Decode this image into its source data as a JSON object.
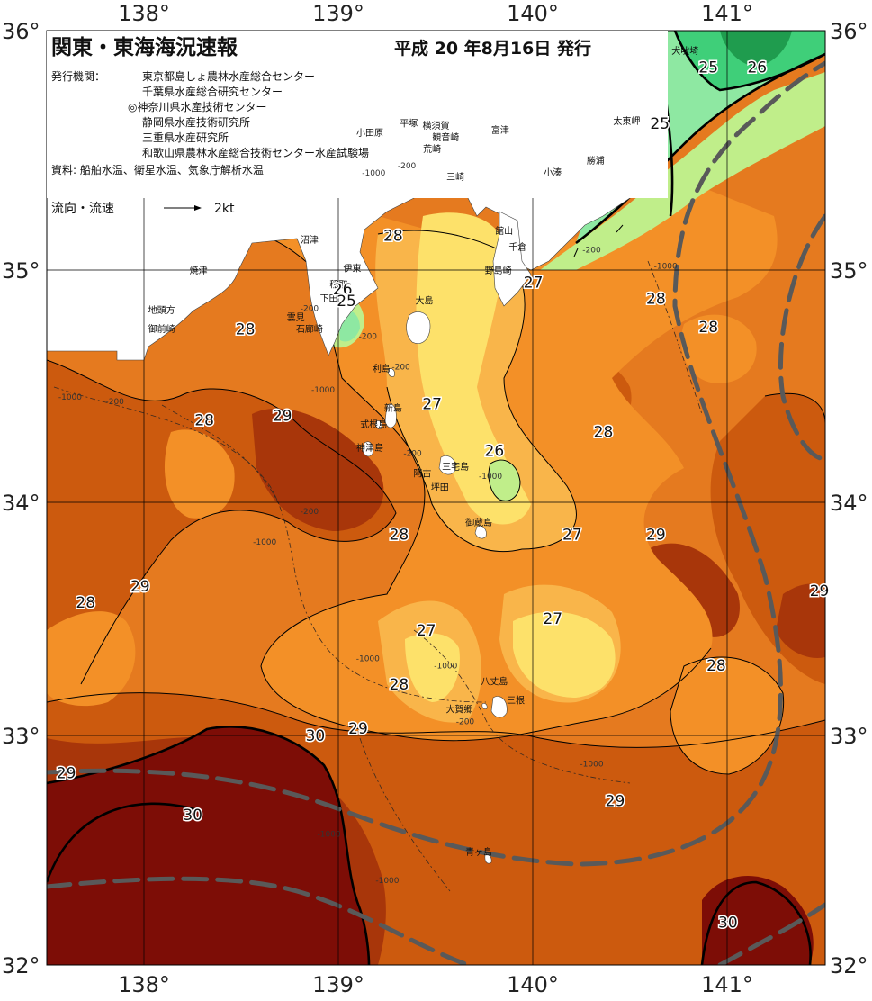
{
  "header": {
    "title": "関東・東海海況速報",
    "issue_date": "平成 20 年8月16日 発行",
    "org_label": "発行機関：",
    "organizations": [
      "東京都島しょ農林水産総合センター",
      "千葉県水産総合研究センター",
      "◎神奈川県水産技術センター",
      "静岡県水産技術研究所",
      "三重県水産研究所",
      "和歌山県農林水産総合技術センター水産試験場"
    ],
    "source": "資料: 船舶水温、衛星水温、気象庁解析水温",
    "current_legend_label": "流向・流速",
    "current_legend_scale": "2kt"
  },
  "axes": {
    "lon_labels": [
      "138°",
      "139°",
      "140°",
      "141°"
    ],
    "lat_labels": [
      "36°",
      "35°",
      "34°",
      "33°",
      "32°"
    ],
    "lon_range": [
      137.5,
      141.5
    ],
    "lat_range": [
      32,
      36
    ]
  },
  "isotherm_labels": [
    {
      "text": "25",
      "lon": 140.9,
      "lat": 35.82
    },
    {
      "text": "26",
      "lon": 141.15,
      "lat": 35.82
    },
    {
      "text": "25",
      "lon": 140.65,
      "lat": 35.58
    },
    {
      "text": "28",
      "lon": 139.28,
      "lat": 35.1
    },
    {
      "text": "26",
      "lon": 139.02,
      "lat": 34.87
    },
    {
      "text": "25",
      "lon": 139.04,
      "lat": 34.82
    },
    {
      "text": "27",
      "lon": 140.0,
      "lat": 34.9
    },
    {
      "text": "28",
      "lon": 140.63,
      "lat": 34.83
    },
    {
      "text": "28",
      "lon": 140.9,
      "lat": 34.71
    },
    {
      "text": "28",
      "lon": 138.52,
      "lat": 34.7
    },
    {
      "text": "27",
      "lon": 139.48,
      "lat": 34.38
    },
    {
      "text": "28",
      "lon": 138.31,
      "lat": 34.31
    },
    {
      "text": "29",
      "lon": 138.71,
      "lat": 34.33
    },
    {
      "text": "28",
      "lon": 140.36,
      "lat": 34.26
    },
    {
      "text": "26",
      "lon": 139.8,
      "lat": 34.18
    },
    {
      "text": "28",
      "lon": 139.31,
      "lat": 33.82
    },
    {
      "text": "27",
      "lon": 140.2,
      "lat": 33.82
    },
    {
      "text": "29",
      "lon": 140.63,
      "lat": 33.82
    },
    {
      "text": "29",
      "lon": 137.98,
      "lat": 33.6
    },
    {
      "text": "28",
      "lon": 137.7,
      "lat": 33.53
    },
    {
      "text": "29",
      "lon": 141.47,
      "lat": 33.58
    },
    {
      "text": "27",
      "lon": 140.1,
      "lat": 33.46
    },
    {
      "text": "27",
      "lon": 139.45,
      "lat": 33.41
    },
    {
      "text": "28",
      "lon": 140.94,
      "lat": 33.26
    },
    {
      "text": "28",
      "lon": 139.31,
      "lat": 33.18
    },
    {
      "text": "30",
      "lon": 138.88,
      "lat": 32.96
    },
    {
      "text": "29",
      "lon": 139.1,
      "lat": 32.99
    },
    {
      "text": "29",
      "lon": 137.6,
      "lat": 32.8
    },
    {
      "text": "30",
      "lon": 138.25,
      "lat": 32.62
    },
    {
      "text": "29",
      "lon": 140.42,
      "lat": 32.68
    },
    {
      "text": "30",
      "lon": 141.0,
      "lat": 32.16
    }
  ],
  "place_names": [
    {
      "text": "犬吠埼",
      "lon": 140.78,
      "lat": 35.9
    },
    {
      "text": "太東岬",
      "lon": 140.48,
      "lat": 35.6
    },
    {
      "text": "勝浦",
      "lon": 140.32,
      "lat": 35.43
    },
    {
      "text": "小湊",
      "lon": 140.1,
      "lat": 35.38
    },
    {
      "text": "平塚",
      "lon": 139.36,
      "lat": 35.59
    },
    {
      "text": "横須賀",
      "lon": 139.5,
      "lat": 35.58
    },
    {
      "text": "小田原",
      "lon": 139.16,
      "lat": 35.55
    },
    {
      "text": "観音崎",
      "lon": 139.55,
      "lat": 35.53
    },
    {
      "text": "荒崎",
      "lon": 139.48,
      "lat": 35.48
    },
    {
      "text": "富津",
      "lon": 139.83,
      "lat": 35.56
    },
    {
      "text": "三崎",
      "lon": 139.6,
      "lat": 35.36
    },
    {
      "text": "館山",
      "lon": 139.85,
      "lat": 35.13
    },
    {
      "text": "千倉",
      "lon": 139.92,
      "lat": 35.06
    },
    {
      "text": "野島崎",
      "lon": 139.82,
      "lat": 34.96
    },
    {
      "text": "沼津",
      "lon": 138.85,
      "lat": 35.09
    },
    {
      "text": "伊東",
      "lon": 139.07,
      "lat": 34.97
    },
    {
      "text": "焼津",
      "lon": 138.28,
      "lat": 34.96
    },
    {
      "text": "稲取",
      "lon": 139.0,
      "lat": 34.9
    },
    {
      "text": "下田",
      "lon": 138.95,
      "lat": 34.84
    },
    {
      "text": "雲見",
      "lon": 138.78,
      "lat": 34.76
    },
    {
      "text": "石廊崎",
      "lon": 138.85,
      "lat": 34.71
    },
    {
      "text": "地頭方",
      "lon": 138.09,
      "lat": 34.79
    },
    {
      "text": "御前崎",
      "lon": 138.09,
      "lat": 34.71
    },
    {
      "text": "大島",
      "lon": 139.44,
      "lat": 34.83
    },
    {
      "text": "利島",
      "lon": 139.22,
      "lat": 34.54
    },
    {
      "text": "新島",
      "lon": 139.28,
      "lat": 34.37
    },
    {
      "text": "式根島",
      "lon": 139.18,
      "lat": 34.3
    },
    {
      "text": "神津島",
      "lon": 139.16,
      "lat": 34.2
    },
    {
      "text": "三宅島",
      "lon": 139.6,
      "lat": 34.12
    },
    {
      "text": "阿古",
      "lon": 139.43,
      "lat": 34.09
    },
    {
      "text": "坪田",
      "lon": 139.52,
      "lat": 34.03
    },
    {
      "text": "御蔵島",
      "lon": 139.72,
      "lat": 33.88
    },
    {
      "text": "八丈島",
      "lon": 139.8,
      "lat": 33.2
    },
    {
      "text": "三根",
      "lon": 139.91,
      "lat": 33.12
    },
    {
      "text": "大賀郷",
      "lon": 139.62,
      "lat": 33.08
    },
    {
      "text": "青ヶ島",
      "lon": 139.72,
      "lat": 32.47
    }
  ],
  "depth_labels": [
    {
      "text": "-1000",
      "lon": 139.18,
      "lat": 35.38
    },
    {
      "text": "-200",
      "lon": 139.35,
      "lat": 35.41
    },
    {
      "text": "-200",
      "lon": 140.3,
      "lat": 35.05
    },
    {
      "text": "-1000",
      "lon": 140.68,
      "lat": 34.98
    },
    {
      "text": "-200",
      "lon": 138.85,
      "lat": 34.8
    },
    {
      "text": "-200",
      "lon": 139.15,
      "lat": 34.68
    },
    {
      "text": "-200",
      "lon": 139.32,
      "lat": 34.55
    },
    {
      "text": "-1000",
      "lon": 138.92,
      "lat": 34.45
    },
    {
      "text": "-1000",
      "lon": 137.62,
      "lat": 34.42
    },
    {
      "text": "-200",
      "lon": 137.85,
      "lat": 34.4
    },
    {
      "text": "-200",
      "lon": 139.38,
      "lat": 34.18
    },
    {
      "text": "-1000",
      "lon": 139.78,
      "lat": 34.08
    },
    {
      "text": "-200",
      "lon": 138.85,
      "lat": 33.93
    },
    {
      "text": "-1000",
      "lon": 138.62,
      "lat": 33.8
    },
    {
      "text": "-1000",
      "lon": 139.15,
      "lat": 33.3
    },
    {
      "text": "-1000",
      "lon": 139.55,
      "lat": 33.27
    },
    {
      "text": "-200",
      "lon": 139.65,
      "lat": 33.03
    },
    {
      "text": "-1000",
      "lon": 140.3,
      "lat": 32.85
    },
    {
      "text": "-1000",
      "lon": 138.95,
      "lat": 32.55
    },
    {
      "text": "-1000",
      "lon": 139.25,
      "lat": 32.35
    }
  ],
  "colors": {
    "t24": "#1f9c4e",
    "t25": "#3fcf79",
    "t25b": "#8ee8a2",
    "t26": "#c0ee8a",
    "t27": "#fde16a",
    "t27b": "#f9b54a",
    "t28": "#f39027",
    "t28b": "#e57a1f",
    "t29": "#cc5a0e",
    "t29b": "#a8360a",
    "t30": "#7d0d06",
    "land": "#ffffff",
    "kuroshio": "#595959"
  }
}
